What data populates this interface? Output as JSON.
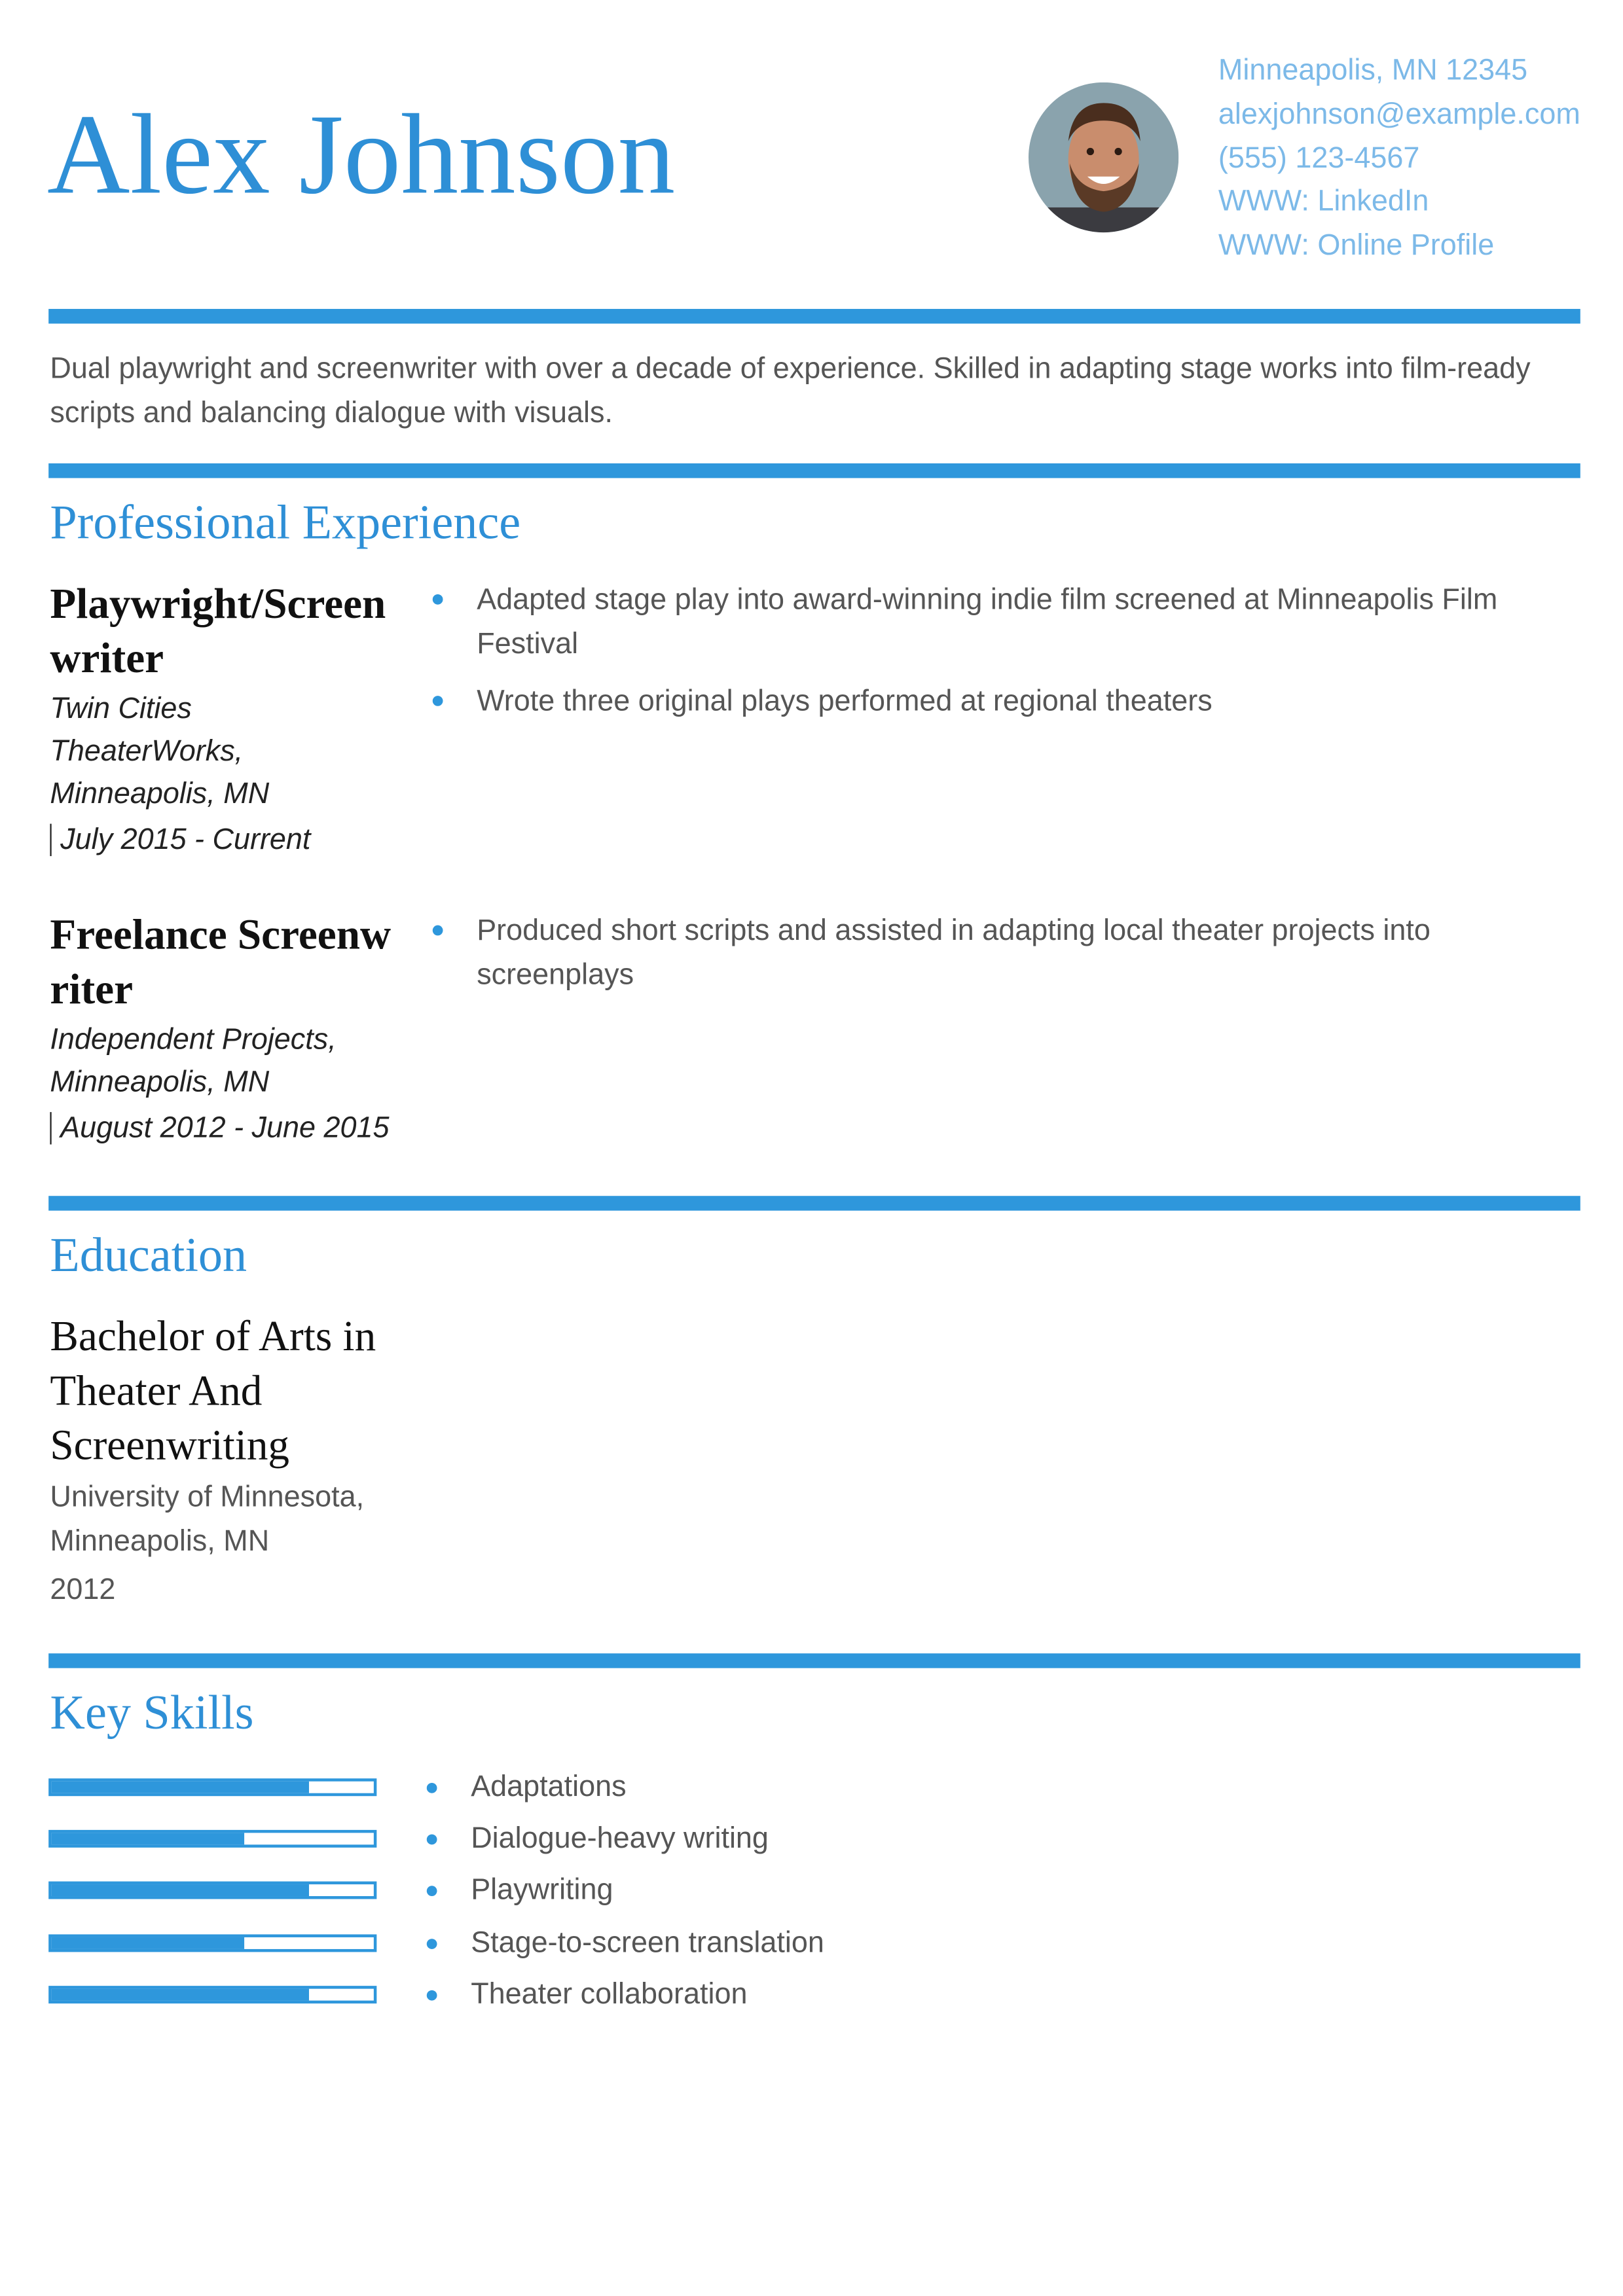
{
  "header": {
    "name": "Alex Johnson",
    "contact": [
      "Minneapolis, MN 12345",
      "alexjohnson@example.com",
      "(555) 123-4567",
      "WWW: LinkedIn",
      "WWW: Online Profile"
    ]
  },
  "summary": "Dual playwright and screenwriter with over a decade of experience. Skilled in adapting stage works into film-ready scripts and balancing dialogue with visuals.",
  "experience": {
    "heading": "Professional Experience",
    "jobs": [
      {
        "title": "Playwright/Screenwriter",
        "company": "Twin Cities TheaterWorks,",
        "location": "Minneapolis, MN",
        "dates": "July 2015 - Current",
        "bullets": [
          "Adapted stage play into award-winning indie film screened at Minneapolis Film Festival",
          "Wrote three original plays performed at regional theaters"
        ]
      },
      {
        "title": "Freelance Screenwriter",
        "company": "Independent Projects,",
        "location": "Minneapolis, MN",
        "dates": "August 2012 - June 2015",
        "bullets": [
          "Produced short scripts and assisted in adapting local theater projects into screenplays"
        ]
      }
    ]
  },
  "education": {
    "heading": "Education",
    "degree": "Bachelor of Arts in Theater And Screenwriting",
    "school": "University of Minnesota,",
    "location": "Minneapolis, MN",
    "year": "2012"
  },
  "skills": {
    "heading": "Key Skills",
    "items": [
      {
        "name": "Adaptations",
        "level": 0.8
      },
      {
        "name": "Dialogue-heavy writing",
        "level": 0.6
      },
      {
        "name": "Playwriting",
        "level": 0.8
      },
      {
        "name": "Stage-to-screen translation",
        "level": 0.6
      },
      {
        "name": "Theater collaboration",
        "level": 0.8
      }
    ]
  }
}
